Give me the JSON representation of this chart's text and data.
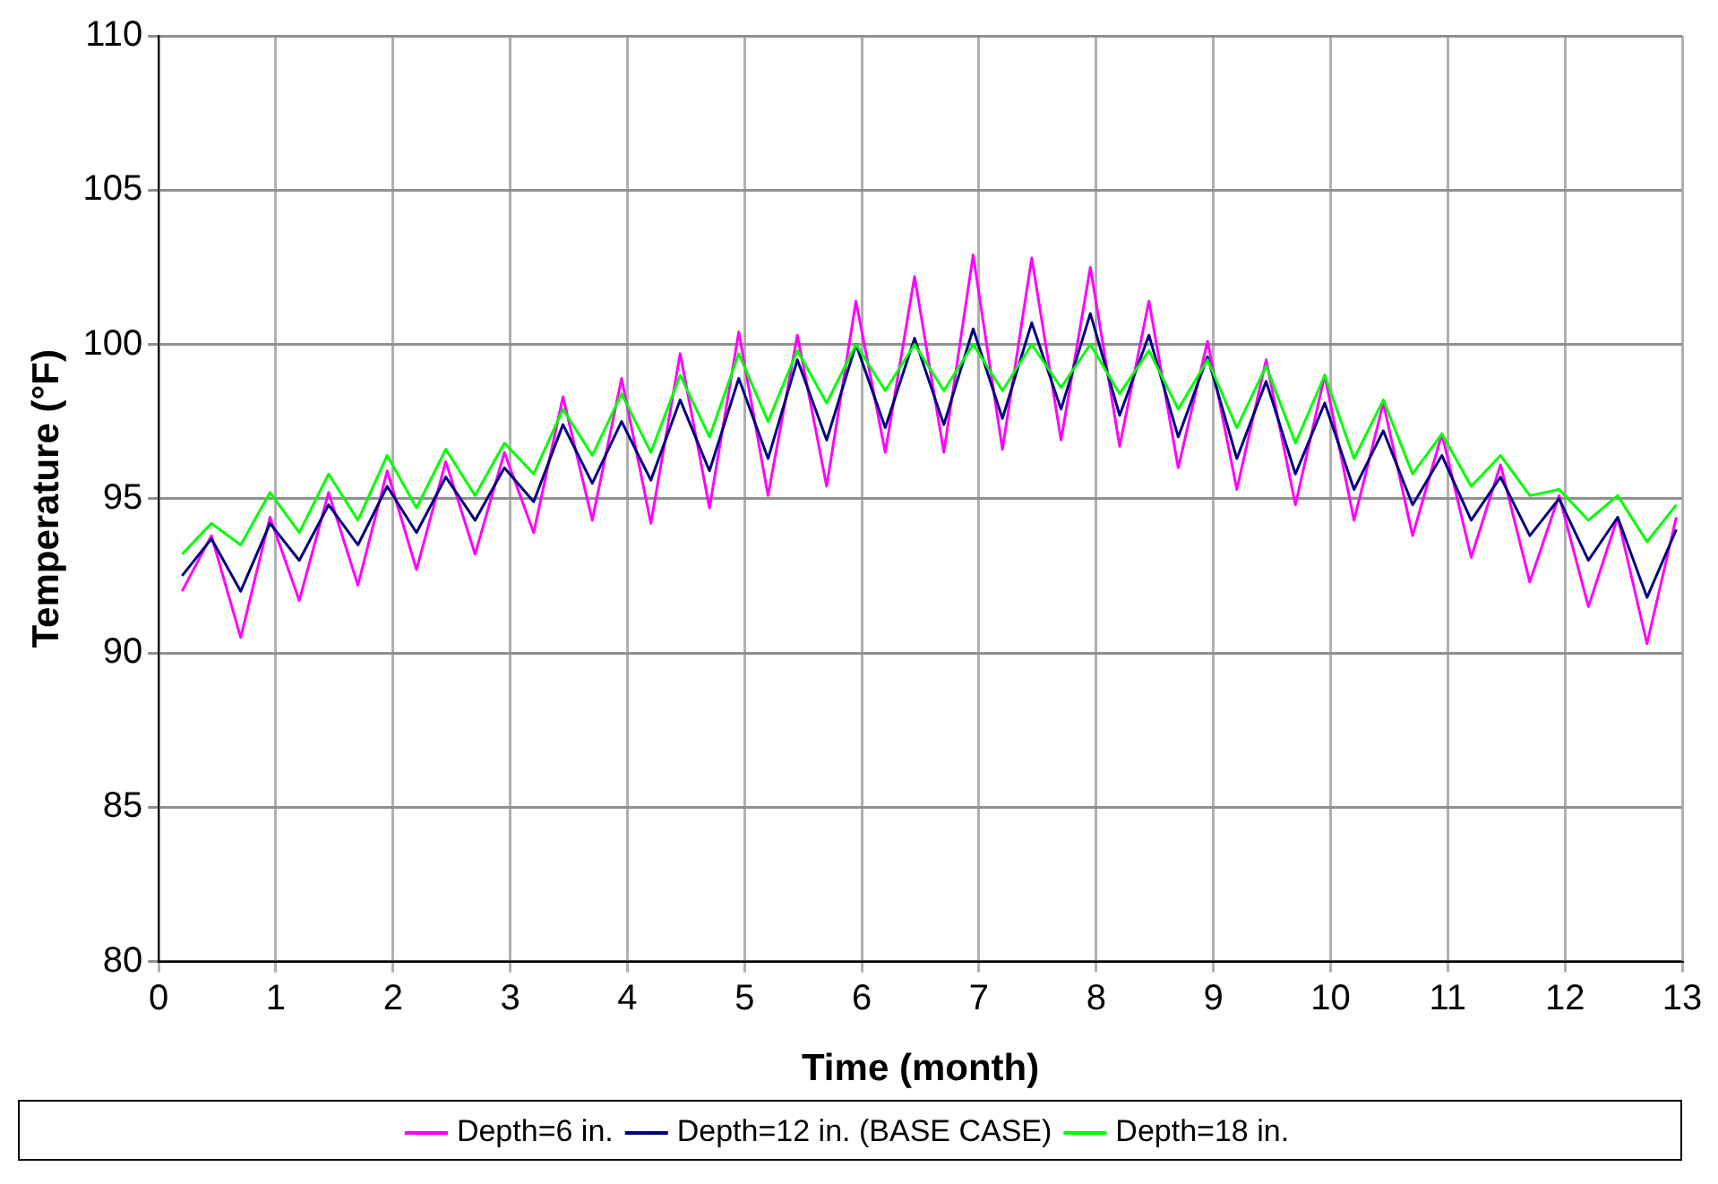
{
  "chart_data": {
    "type": "line",
    "xlabel": "Time (month)",
    "ylabel": "Temperature (°F)",
    "x": [
      0.2,
      0.45,
      0.7,
      0.95,
      1.2,
      1.45,
      1.7,
      1.95,
      2.2,
      2.45,
      2.7,
      2.95,
      3.2,
      3.45,
      3.7,
      3.95,
      4.2,
      4.45,
      4.7,
      4.95,
      5.2,
      5.45,
      5.7,
      5.95,
      6.2,
      6.45,
      6.7,
      6.95,
      7.2,
      7.45,
      7.7,
      7.95,
      8.2,
      8.45,
      8.7,
      8.95,
      9.2,
      9.45,
      9.7,
      9.95,
      10.2,
      10.45,
      10.7,
      10.95,
      11.2,
      11.45,
      11.7,
      11.95,
      12.2,
      12.45,
      12.7,
      12.95
    ],
    "series": [
      {
        "name": "Depth=6 in.",
        "color": "#ff00ff",
        "values": [
          92,
          93.8,
          90.5,
          94.4,
          91.7,
          95.2,
          92.2,
          95.9,
          92.7,
          96.2,
          93.2,
          96.5,
          93.9,
          98.3,
          94.3,
          98.9,
          94.2,
          99.7,
          94.7,
          100.4,
          95.1,
          100.3,
          95.4,
          101.4,
          96.5,
          102.2,
          96.5,
          102.9,
          96.6,
          102.8,
          96.9,
          102.5,
          96.7,
          101.4,
          96,
          100.1,
          95.3,
          99.5,
          94.8,
          99,
          94.3,
          98.1,
          93.8,
          97.1,
          93.1,
          96.1,
          92.3,
          95.1,
          91.5,
          94.4,
          90.3,
          94.4
        ]
      },
      {
        "name": "Depth=12 in. (BASE CASE)",
        "color": "#000080",
        "values": [
          92.5,
          93.7,
          92,
          94.2,
          93,
          94.8,
          93.5,
          95.4,
          93.9,
          95.7,
          94.3,
          96,
          94.9,
          97.4,
          95.5,
          97.5,
          95.6,
          98.2,
          95.9,
          98.9,
          96.3,
          99.5,
          96.9,
          100,
          97.3,
          100.2,
          97.4,
          100.5,
          97.6,
          100.7,
          97.9,
          101,
          97.7,
          100.3,
          97,
          99.6,
          96.3,
          98.8,
          95.8,
          98.1,
          95.3,
          97.2,
          94.8,
          96.4,
          94.3,
          95.7,
          93.8,
          95,
          93,
          94.4,
          91.8,
          94
        ]
      },
      {
        "name": "Depth=18 in.",
        "color": "#00ff00",
        "values": [
          93.2,
          94.2,
          93.5,
          95.2,
          93.9,
          95.8,
          94.3,
          96.4,
          94.7,
          96.6,
          95.1,
          96.8,
          95.8,
          97.9,
          96.4,
          98.4,
          96.5,
          99,
          97,
          99.7,
          97.5,
          99.8,
          98.1,
          100,
          98.5,
          100,
          98.5,
          100,
          98.5,
          100,
          98.6,
          100,
          98.4,
          99.8,
          97.9,
          99.5,
          97.3,
          99.3,
          96.8,
          99,
          96.3,
          98.2,
          95.8,
          97.1,
          95.4,
          96.4,
          95.1,
          95.3,
          94.3,
          95.1,
          93.6,
          94.8
        ]
      }
    ],
    "xlim": [
      0,
      13
    ],
    "xticks": [
      0,
      1,
      2,
      3,
      4,
      5,
      6,
      7,
      8,
      9,
      10,
      11,
      12,
      13
    ],
    "ylim": [
      80,
      110
    ],
    "yticks": [
      80,
      85,
      90,
      95,
      100,
      105,
      110
    ],
    "grid": true,
    "legend": "bottom",
    "marker": "none",
    "line_style": "solid"
  }
}
